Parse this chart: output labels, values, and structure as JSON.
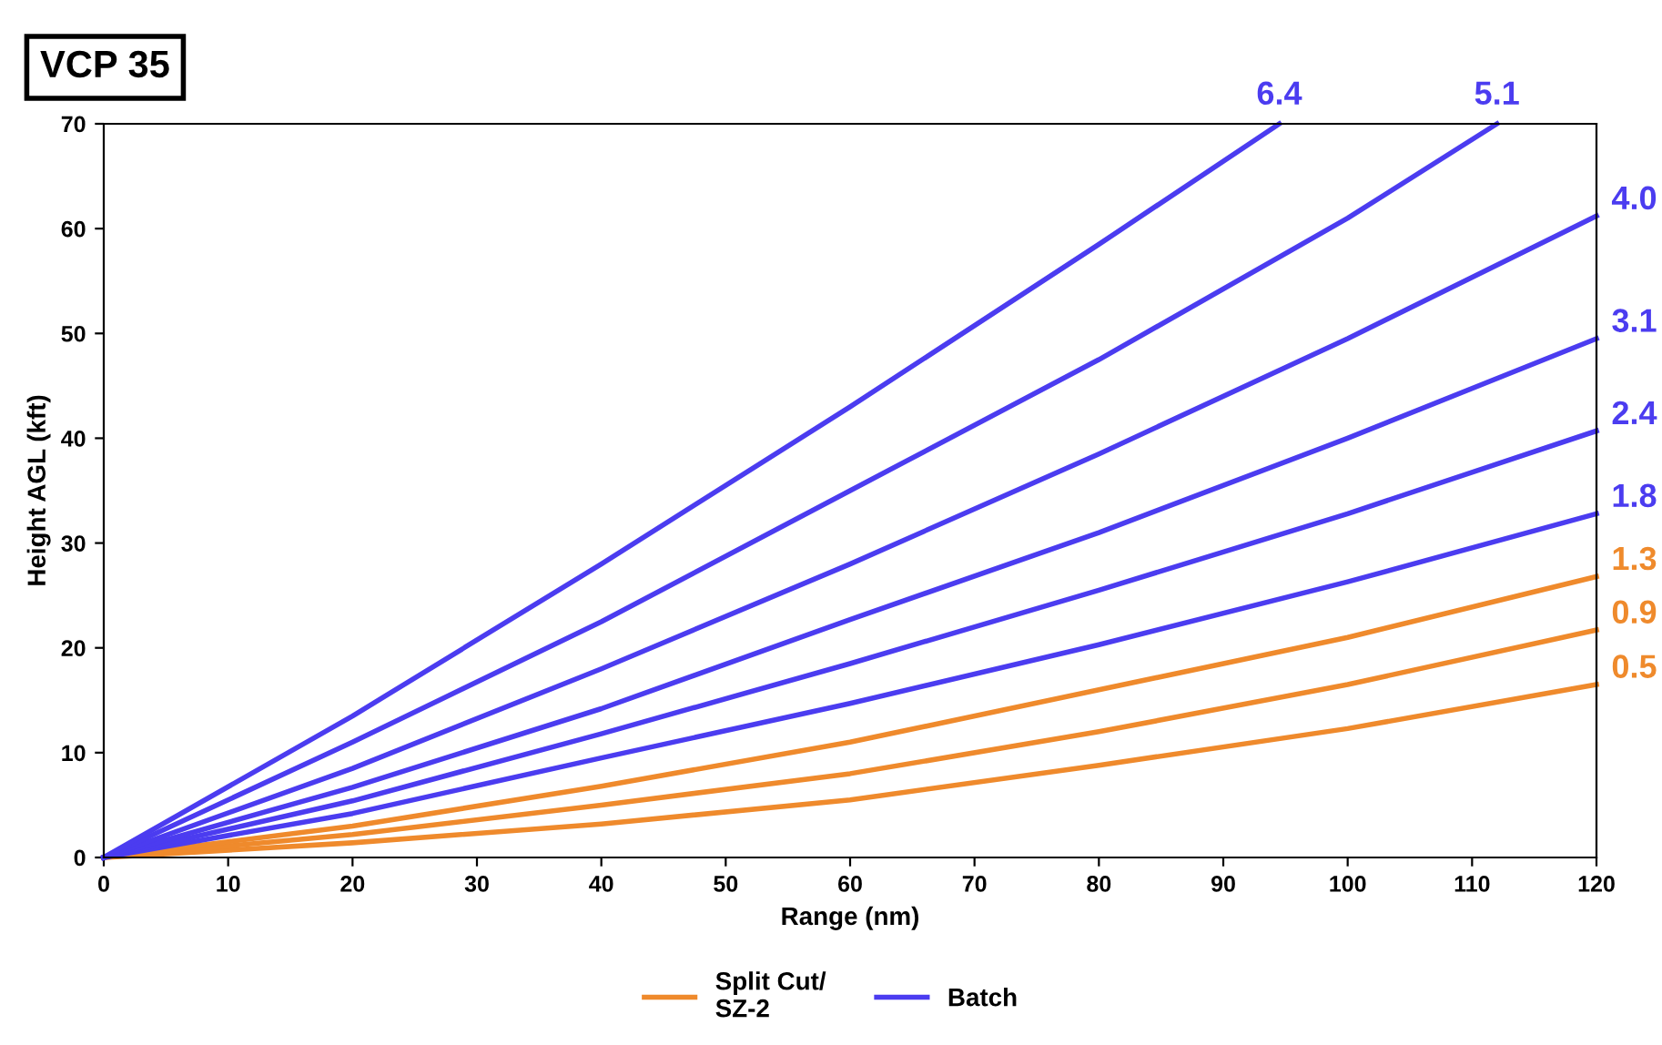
{
  "chart_data": {
    "type": "line",
    "title": "VCP 35",
    "xlabel": "Range (nm)",
    "ylabel": "Height AGL (kft)",
    "xlim": [
      0,
      120
    ],
    "ylim": [
      0,
      70
    ],
    "xticks": [
      0,
      10,
      20,
      30,
      40,
      50,
      60,
      70,
      80,
      90,
      100,
      110,
      120
    ],
    "yticks": [
      0,
      10,
      20,
      30,
      40,
      50,
      60,
      70
    ],
    "grid": false,
    "legend": "bottom",
    "annotations": [
      {
        "text": "0.5",
        "x": 120,
        "y": 16.5
      },
      {
        "text": "0.9",
        "x": 120,
        "y": 21.7
      },
      {
        "text": "1.3",
        "x": 120,
        "y": 26.8
      },
      {
        "text": "1.8",
        "x": 120,
        "y": 32.8
      },
      {
        "text": "2.4",
        "x": 120,
        "y": 40.7
      },
      {
        "text": "3.1",
        "x": 120,
        "y": 49.5
      },
      {
        "text": "4.0",
        "x": 120,
        "y": 61.2
      },
      {
        "text": "5.1",
        "x": 112,
        "y": 70
      },
      {
        "text": "6.4",
        "x": 94.5,
        "y": 70
      }
    ],
    "series": [
      {
        "name": "Split Cut/\nSZ-2",
        "color": "#ef8a2c",
        "x": [
          0,
          20,
          40,
          60,
          80,
          100,
          120
        ],
        "values": [
          0,
          1.4,
          3.2,
          5.5,
          8.8,
          12.3,
          16.5
        ]
      },
      {
        "color": "#ef8a2c",
        "x": [
          0,
          20,
          40,
          60,
          80,
          100,
          120
        ],
        "values": [
          0,
          2.2,
          5.0,
          8.0,
          12.0,
          16.5,
          21.7
        ]
      },
      {
        "color": "#ef8a2c",
        "x": [
          0,
          20,
          40,
          60,
          80,
          100,
          120
        ],
        "values": [
          0,
          3.0,
          6.8,
          11.0,
          16.0,
          21.0,
          26.8
        ]
      },
      {
        "name": "Batch",
        "color": "#4b3cf0",
        "x": [
          0,
          20,
          40,
          60,
          80,
          100,
          120
        ],
        "values": [
          0,
          4.2,
          9.5,
          14.7,
          20.3,
          26.3,
          32.8
        ]
      },
      {
        "color": "#4b3cf0",
        "x": [
          0,
          20,
          40,
          60,
          80,
          100,
          120
        ],
        "values": [
          0,
          5.4,
          11.8,
          18.5,
          25.5,
          32.8,
          40.7
        ]
      },
      {
        "color": "#4b3cf0",
        "x": [
          0,
          20,
          40,
          60,
          80,
          100,
          120
        ],
        "values": [
          0,
          6.7,
          14.2,
          22.7,
          31.0,
          40.0,
          49.5
        ]
      },
      {
        "color": "#4b3cf0",
        "x": [
          0,
          20,
          40,
          60,
          80,
          100,
          120
        ],
        "values": [
          0,
          8.5,
          18.0,
          28.0,
          38.5,
          49.5,
          61.2
        ]
      },
      {
        "color": "#4b3cf0",
        "x": [
          0,
          20,
          40,
          60,
          80,
          100,
          112
        ],
        "values": [
          0,
          11.0,
          22.5,
          35.0,
          47.5,
          61.0,
          70
        ]
      },
      {
        "color": "#4b3cf0",
        "x": [
          0,
          20,
          40,
          60,
          80,
          94.5
        ],
        "values": [
          0,
          13.5,
          28.0,
          43.0,
          58.5,
          70
        ]
      }
    ]
  }
}
